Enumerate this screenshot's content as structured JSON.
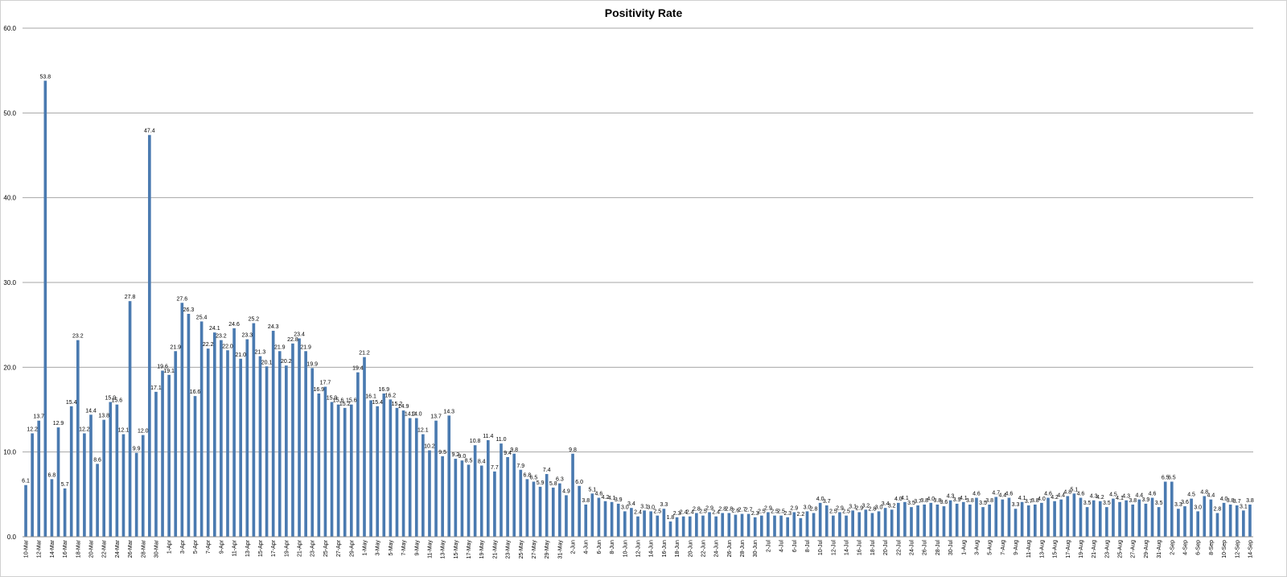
{
  "chart_data": {
    "type": "bar",
    "title": "Positivity Rate",
    "xlabel": "",
    "ylabel": "",
    "ylim": [
      0,
      60
    ],
    "yticks": [
      "0.0",
      "10.0",
      "20.0",
      "30.0",
      "40.0",
      "50.0",
      "60.0"
    ],
    "grid": true,
    "legend": "none",
    "bar_color": "#4a7ab0",
    "grid_color": "#a6a6a6",
    "start_date": "10-Mar",
    "x_labels": [
      "10-Mar",
      "12-Mar",
      "14-Mar",
      "16-Mar",
      "18-Mar",
      "20-Mar",
      "22-Mar",
      "24-Mar",
      "26-Mar",
      "28-Mar",
      "30-Mar",
      "1-Apr",
      "3-Apr",
      "5-Apr",
      "7-Apr",
      "9-Apr",
      "11-Apr",
      "13-Apr",
      "15-Apr",
      "17-Apr",
      "19-Apr",
      "21-Apr",
      "23-Apr",
      "25-Apr",
      "27-Apr",
      "29-Apr",
      "1-May",
      "3-May",
      "5-May",
      "7-May",
      "9-May",
      "11-May",
      "13-May",
      "15-May",
      "17-May",
      "19-May",
      "21-May",
      "23-May",
      "25-May",
      "27-May",
      "29-May",
      "31-May",
      "2-Jun",
      "4-Jun",
      "6-Jun",
      "8-Jun",
      "10-Jun",
      "12-Jun",
      "14-Jun",
      "16-Jun",
      "18-Jun",
      "20-Jun",
      "22-Jun",
      "24-Jun",
      "26-Jun",
      "28-Jun",
      "30-Jun",
      "2-Jul",
      "4-Jul",
      "6-Jul",
      "8-Jul",
      "10-Jul",
      "12-Jul",
      "14-Jul",
      "16-Jul",
      "18-Jul",
      "20-Jul",
      "22-Jul",
      "24-Jul",
      "26-Jul",
      "28-Jul",
      "30-Jul",
      "1-Aug",
      "3-Aug",
      "5-Aug",
      "7-Aug",
      "9-Aug",
      "11-Aug",
      "13-Aug",
      "15-Aug",
      "17-Aug",
      "19-Aug",
      "21-Aug",
      "23-Aug",
      "25-Aug",
      "27-Aug",
      "29-Aug",
      "31-Aug",
      "2-Sep",
      "4-Sep",
      "6-Sep",
      "8-Sep",
      "10-Sep",
      "12-Sep",
      "14-Sep"
    ],
    "values": [
      6.1,
      12.2,
      13.7,
      53.8,
      6.8,
      12.9,
      5.7,
      15.4,
      23.2,
      12.2,
      14.4,
      8.6,
      13.8,
      15.9,
      15.6,
      12.1,
      27.8,
      9.9,
      12.0,
      47.4,
      17.1,
      19.6,
      19.1,
      21.9,
      27.6,
      26.3,
      16.6,
      25.4,
      22.2,
      24.1,
      23.2,
      22.0,
      24.6,
      21.0,
      23.3,
      25.2,
      21.3,
      20.1,
      24.3,
      21.9,
      20.2,
      22.8,
      23.4,
      21.9,
      19.9,
      16.9,
      17.7,
      15.9,
      15.6,
      15.2,
      15.6,
      19.4,
      21.2,
      16.1,
      15.4,
      16.9,
      16.2,
      15.2,
      14.9,
      14.0,
      14.0,
      12.1,
      10.2,
      13.7,
      9.5,
      14.3,
      9.2,
      9.0,
      8.5,
      10.8,
      8.4,
      11.4,
      7.7,
      11.0,
      9.4,
      9.8,
      7.9,
      6.8,
      6.5,
      5.9,
      7.4,
      5.8,
      6.3,
      4.9,
      9.8,
      6.0,
      3.8,
      5.1,
      4.6,
      4.2,
      4.1,
      3.9,
      3.0,
      3.4,
      2.4,
      3.1,
      3.0,
      2.5,
      3.3,
      1.8,
      2.3,
      2.4,
      2.4,
      2.8,
      2.5,
      2.9,
      2.4,
      2.8,
      2.8,
      2.6,
      2.7,
      2.7,
      2.3,
      2.5,
      2.9,
      2.5,
      2.5,
      2.3,
      2.9,
      2.2,
      3.0,
      2.8,
      4.0,
      3.7,
      2.5,
      2.9,
      2.5,
      3.1,
      2.9,
      3.2,
      2.8,
      3.0,
      3.4,
      3.2,
      4.0,
      4.1,
      3.5,
      3.7,
      3.8,
      4.0,
      3.8,
      3.6,
      4.3,
      3.9,
      4.1,
      3.8,
      4.6,
      3.5,
      3.8,
      4.7,
      4.4,
      4.6,
      3.3,
      4.1,
      3.7,
      3.8,
      4.0,
      4.6,
      4.2,
      4.4,
      4.8,
      5.1,
      4.6,
      3.5,
      4.3,
      4.2,
      3.5,
      4.5,
      4.1,
      4.3,
      3.8,
      4.4,
      3.9,
      4.6,
      3.5,
      6.5,
      6.5,
      3.3,
      3.6,
      4.5,
      3.0,
      4.8,
      4.4,
      2.8,
      4.0,
      3.8,
      3.7,
      3.1,
      3.8
    ]
  }
}
